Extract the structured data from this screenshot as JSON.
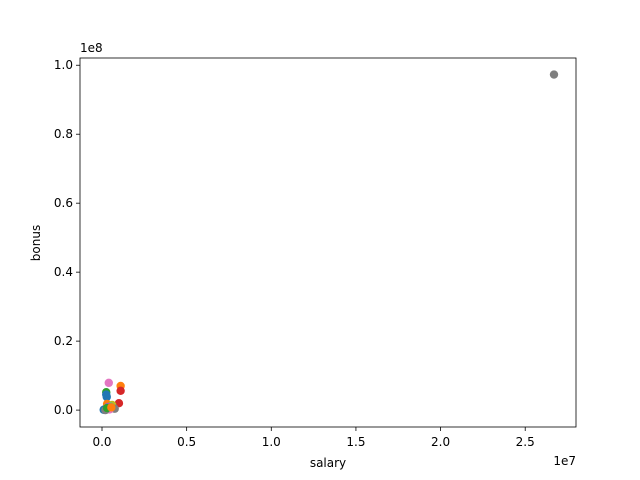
{
  "chart_data": {
    "type": "scatter",
    "title": "",
    "xlabel": "salary",
    "ylabel": "bonus",
    "x_multiplier": "1e7",
    "y_multiplier": "1e8",
    "xlim": [
      -1300000.0,
      28000000.0
    ],
    "ylim": [
      -4900000.0,
      102100000.0
    ],
    "x_ticks": [
      0,
      5000000,
      10000000,
      15000000,
      20000000,
      25000000
    ],
    "x_tick_labels": [
      "0.0",
      "0.5",
      "1.0",
      "1.5",
      "2.0",
      "2.5"
    ],
    "y_ticks": [
      0,
      20000000,
      40000000,
      60000000,
      80000000,
      100000000
    ],
    "y_tick_labels": [
      "0.0",
      "0.2",
      "0.4",
      "0.6",
      "0.8",
      "1.0"
    ],
    "grid": false,
    "legend": "none",
    "points": [
      {
        "x": 26700000,
        "y": 97300000,
        "color": "#7f7f7f"
      },
      {
        "x": 1100000,
        "y": 7000000,
        "color": "#ff7f0e"
      },
      {
        "x": 400000,
        "y": 7900000,
        "color": "#e377c2"
      },
      {
        "x": 1100000,
        "y": 5600000,
        "color": "#d62728"
      },
      {
        "x": 1000000,
        "y": 2000000,
        "color": "#d62728"
      },
      {
        "x": 250000,
        "y": 5200000,
        "color": "#2ca02c"
      },
      {
        "x": 250000,
        "y": 4500000,
        "color": "#1f77b4"
      },
      {
        "x": 280000,
        "y": 3800000,
        "color": "#1f77b4"
      },
      {
        "x": 300000,
        "y": 1800000,
        "color": "#ff7f0e"
      },
      {
        "x": 600000,
        "y": 1500000,
        "color": "#bcbd22"
      },
      {
        "x": 500000,
        "y": 1000000,
        "color": "#17becf"
      },
      {
        "x": 350000,
        "y": 900000,
        "color": "#9467bd"
      },
      {
        "x": 750000,
        "y": 400000,
        "color": "#7f7f7f"
      },
      {
        "x": 200000,
        "y": 300000,
        "color": "#8c564b"
      },
      {
        "x": 450000,
        "y": 200000,
        "color": "#e377c2"
      },
      {
        "x": 100000,
        "y": 100000,
        "color": "#1f77b4"
      },
      {
        "x": 200000,
        "y": 0,
        "color": "#7f7f7f"
      },
      {
        "x": 300000,
        "y": 600000,
        "color": "#2ca02c"
      },
      {
        "x": 550000,
        "y": 800000,
        "color": "#ff7f0e"
      }
    ]
  }
}
